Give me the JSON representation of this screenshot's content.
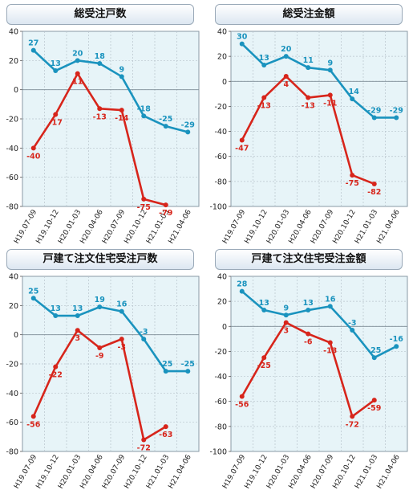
{
  "chart_data": [
    {
      "type": "line",
      "title": "総受注戸数",
      "categories": [
        "H19.07-09",
        "H19.10-12",
        "H20.01-03",
        "H20.04-06",
        "H20.07-09",
        "H20.10-12",
        "H21.01-03",
        "H21.04-06"
      ],
      "ylim": [
        -80,
        40
      ],
      "yticks": [
        40,
        20,
        0,
        -20,
        -40,
        -60,
        -80
      ],
      "grid": true,
      "series": [
        {
          "color": "#1a93be",
          "values": [
            27,
            13,
            20,
            18,
            9,
            -18,
            -25,
            -29
          ]
        },
        {
          "color": "#d7251b",
          "values": [
            -40,
            -17,
            11,
            -13,
            -14,
            -75,
            -79,
            null
          ]
        }
      ]
    },
    {
      "type": "line",
      "title": "総受注金額",
      "categories": [
        "H19.07-09",
        "H19.10-12",
        "H20.01-03",
        "H20.04-06",
        "H20.07-09",
        "H20.10-12",
        "H21.01-03",
        "H21.04-06"
      ],
      "ylim": [
        -100,
        40
      ],
      "yticks": [
        40,
        20,
        0,
        -20,
        -40,
        -60,
        -80,
        -100
      ],
      "grid": true,
      "series": [
        {
          "color": "#1a93be",
          "values": [
            30,
            13,
            20,
            11,
            9,
            -14,
            -29,
            -29
          ]
        },
        {
          "color": "#d7251b",
          "values": [
            -47,
            -13,
            4,
            -13,
            -11,
            -75,
            -82,
            null
          ]
        }
      ]
    },
    {
      "type": "line",
      "title": "戸建て注文住宅受注戸数",
      "categories": [
        "H19.07-09",
        "H19.10-12",
        "H20.01-03",
        "H20.04-06",
        "H20.07-09",
        "H20.10-12",
        "H21.01-03",
        "H21.04-06"
      ],
      "ylim": [
        -80,
        40
      ],
      "yticks": [
        40,
        20,
        0,
        -20,
        -40,
        -60,
        -80
      ],
      "grid": true,
      "series": [
        {
          "color": "#1a93be",
          "values": [
            25,
            13,
            13,
            19,
            16,
            -3,
            -25,
            -25
          ]
        },
        {
          "color": "#d7251b",
          "values": [
            -56,
            -22,
            3,
            -9,
            -3,
            -72,
            -63,
            null
          ]
        }
      ]
    },
    {
      "type": "line",
      "title": "戸建て注文住宅受注金額",
      "categories": [
        "H19.07-09",
        "H19.10-12",
        "H20.01-03",
        "H20.04-06",
        "H20.07-09",
        "H20.10-12",
        "H21.01-03",
        "H21.04-06"
      ],
      "ylim": [
        -100,
        40
      ],
      "yticks": [
        40,
        20,
        0,
        -20,
        -40,
        -60,
        -80,
        -100
      ],
      "grid": true,
      "series": [
        {
          "color": "#1a93be",
          "values": [
            28,
            13,
            9,
            13,
            16,
            -3,
            -25,
            -16
          ]
        },
        {
          "color": "#d7251b",
          "values": [
            -56,
            -25,
            3,
            -6,
            -13,
            -72,
            -59,
            null
          ]
        }
      ]
    }
  ]
}
